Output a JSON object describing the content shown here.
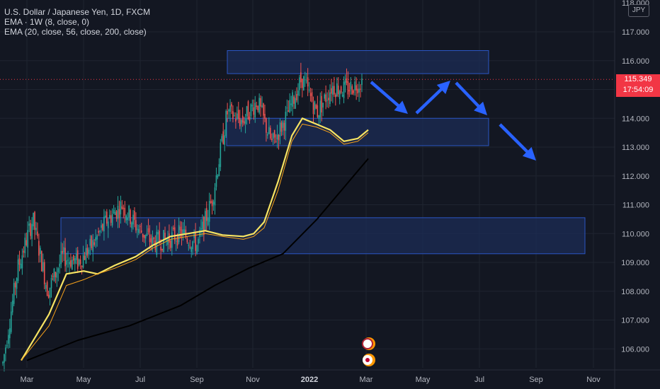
{
  "legend": {
    "title": "U.S. Dollar / Japanese Yen, 1D, FXCM",
    "ema_weekly": "EMA · 1W (8, close, 0)",
    "ema_multi": "EMA (20, close, 56, close, 200, close)"
  },
  "price_axis": {
    "currency": "JPY",
    "top_label": "118.000",
    "ticks": [
      "117.000",
      "116.000",
      "114.000",
      "113.000",
      "112.000",
      "111.000",
      "110.000",
      "109.000",
      "108.000",
      "107.000",
      "106.000"
    ]
  },
  "last_price": {
    "value": "115.349",
    "countdown": "17:54:09",
    "color": "#f23645"
  },
  "time_axis": {
    "labels": [
      "Mar",
      "May",
      "Jul",
      "Sep",
      "Nov",
      "2022",
      "Mar",
      "May",
      "Jul",
      "Sep",
      "Nov"
    ]
  },
  "colors": {
    "background": "#131722",
    "grid": "#1f2430",
    "bull_candle": "#26a69a",
    "bear_candle": "#ef5350",
    "ema_weekly": "#f7e463",
    "ema_20": "#f7a21b",
    "ema_200": "#000000",
    "zone_fill": "#1c2c55",
    "zone_border": "#2b56c4",
    "arrow": "#2962ff"
  },
  "chart_data": {
    "type": "candlestick",
    "symbol": "USD/JPY",
    "timeframe": "1D",
    "ylim": [
      105.6,
      118.0
    ],
    "x_labels": [
      "Mar",
      "May",
      "Jul",
      "Sep",
      "Nov",
      "2022",
      "Mar",
      "May",
      "Jul",
      "Sep",
      "Nov"
    ],
    "close_trend": [
      {
        "date": "2021-03-01",
        "close": 105.5
      },
      {
        "date": "2021-03-20",
        "close": 108.8
      },
      {
        "date": "2021-04-01",
        "close": 110.5
      },
      {
        "date": "2021-04-20",
        "close": 108.0
      },
      {
        "date": "2021-05-01",
        "close": 109.2
      },
      {
        "date": "2021-05-20",
        "close": 109.0
      },
      {
        "date": "2021-06-01",
        "close": 109.6
      },
      {
        "date": "2021-06-20",
        "close": 110.5
      },
      {
        "date": "2021-07-01",
        "close": 111.0
      },
      {
        "date": "2021-07-20",
        "close": 110.2
      },
      {
        "date": "2021-08-01",
        "close": 109.7
      },
      {
        "date": "2021-08-20",
        "close": 109.8
      },
      {
        "date": "2021-09-01",
        "close": 110.0
      },
      {
        "date": "2021-09-20",
        "close": 109.6
      },
      {
        "date": "2021-10-01",
        "close": 111.2
      },
      {
        "date": "2021-10-20",
        "close": 114.2
      },
      {
        "date": "2021-11-01",
        "close": 113.9
      },
      {
        "date": "2021-11-20",
        "close": 114.6
      },
      {
        "date": "2021-12-01",
        "close": 113.1
      },
      {
        "date": "2021-12-20",
        "close": 114.1
      },
      {
        "date": "2022-01-01",
        "close": 115.4
      },
      {
        "date": "2022-01-20",
        "close": 114.2
      },
      {
        "date": "2022-02-01",
        "close": 115.1
      },
      {
        "date": "2022-02-20",
        "close": 115.0
      },
      {
        "date": "2022-03-01",
        "close": 115.3
      }
    ],
    "series": [
      {
        "name": "EMA · 1W (8, close, 0)",
        "points": [
          [
            0,
            105.6
          ],
          [
            0.08,
            107.2
          ],
          [
            0.13,
            108.6
          ],
          [
            0.18,
            108.7
          ],
          [
            0.22,
            108.6
          ],
          [
            0.27,
            108.9
          ],
          [
            0.33,
            109.2
          ],
          [
            0.38,
            109.6
          ],
          [
            0.43,
            109.9
          ],
          [
            0.48,
            110.0
          ],
          [
            0.53,
            110.1
          ],
          [
            0.58,
            109.95
          ],
          [
            0.64,
            109.9
          ],
          [
            0.67,
            110.0
          ],
          [
            0.7,
            110.4
          ],
          [
            0.74,
            111.8
          ],
          [
            0.78,
            113.4
          ],
          [
            0.81,
            114.0
          ],
          [
            0.85,
            113.8
          ],
          [
            0.89,
            113.6
          ],
          [
            0.93,
            113.2
          ],
          [
            0.97,
            113.3
          ],
          [
            1.0,
            113.6
          ]
        ]
      },
      {
        "name": "EMA (20, close)",
        "points": [
          [
            0,
            105.6
          ],
          [
            0.08,
            106.8
          ],
          [
            0.13,
            108.2
          ],
          [
            0.18,
            108.4
          ],
          [
            0.22,
            108.6
          ],
          [
            0.27,
            108.8
          ],
          [
            0.33,
            109.1
          ],
          [
            0.38,
            109.5
          ],
          [
            0.43,
            109.8
          ],
          [
            0.48,
            109.9
          ],
          [
            0.53,
            110.0
          ],
          [
            0.58,
            109.9
          ],
          [
            0.64,
            109.8
          ],
          [
            0.67,
            109.9
          ],
          [
            0.7,
            110.2
          ],
          [
            0.74,
            111.5
          ],
          [
            0.78,
            113.2
          ],
          [
            0.81,
            113.8
          ],
          [
            0.85,
            113.7
          ],
          [
            0.89,
            113.5
          ],
          [
            0.93,
            113.1
          ],
          [
            0.97,
            113.2
          ],
          [
            1.0,
            113.5
          ]
        ]
      },
      {
        "name": "EMA (200, close)",
        "points": [
          [
            0,
            105.6
          ],
          [
            0.15,
            106.3
          ],
          [
            0.3,
            106.8
          ],
          [
            0.45,
            107.5
          ],
          [
            0.55,
            108.2
          ],
          [
            0.65,
            108.8
          ],
          [
            0.75,
            109.3
          ],
          [
            0.85,
            110.5
          ],
          [
            1.0,
            112.6
          ]
        ]
      }
    ],
    "zones": [
      {
        "y_top": 116.35,
        "y_bottom": 115.55
      },
      {
        "y_top": 114.0,
        "y_bottom": 113.05
      },
      {
        "y_top": 110.55,
        "y_bottom": 109.3
      }
    ],
    "projection_arrows": [
      "down",
      "up",
      "down",
      "down"
    ],
    "last_price": 115.349
  }
}
